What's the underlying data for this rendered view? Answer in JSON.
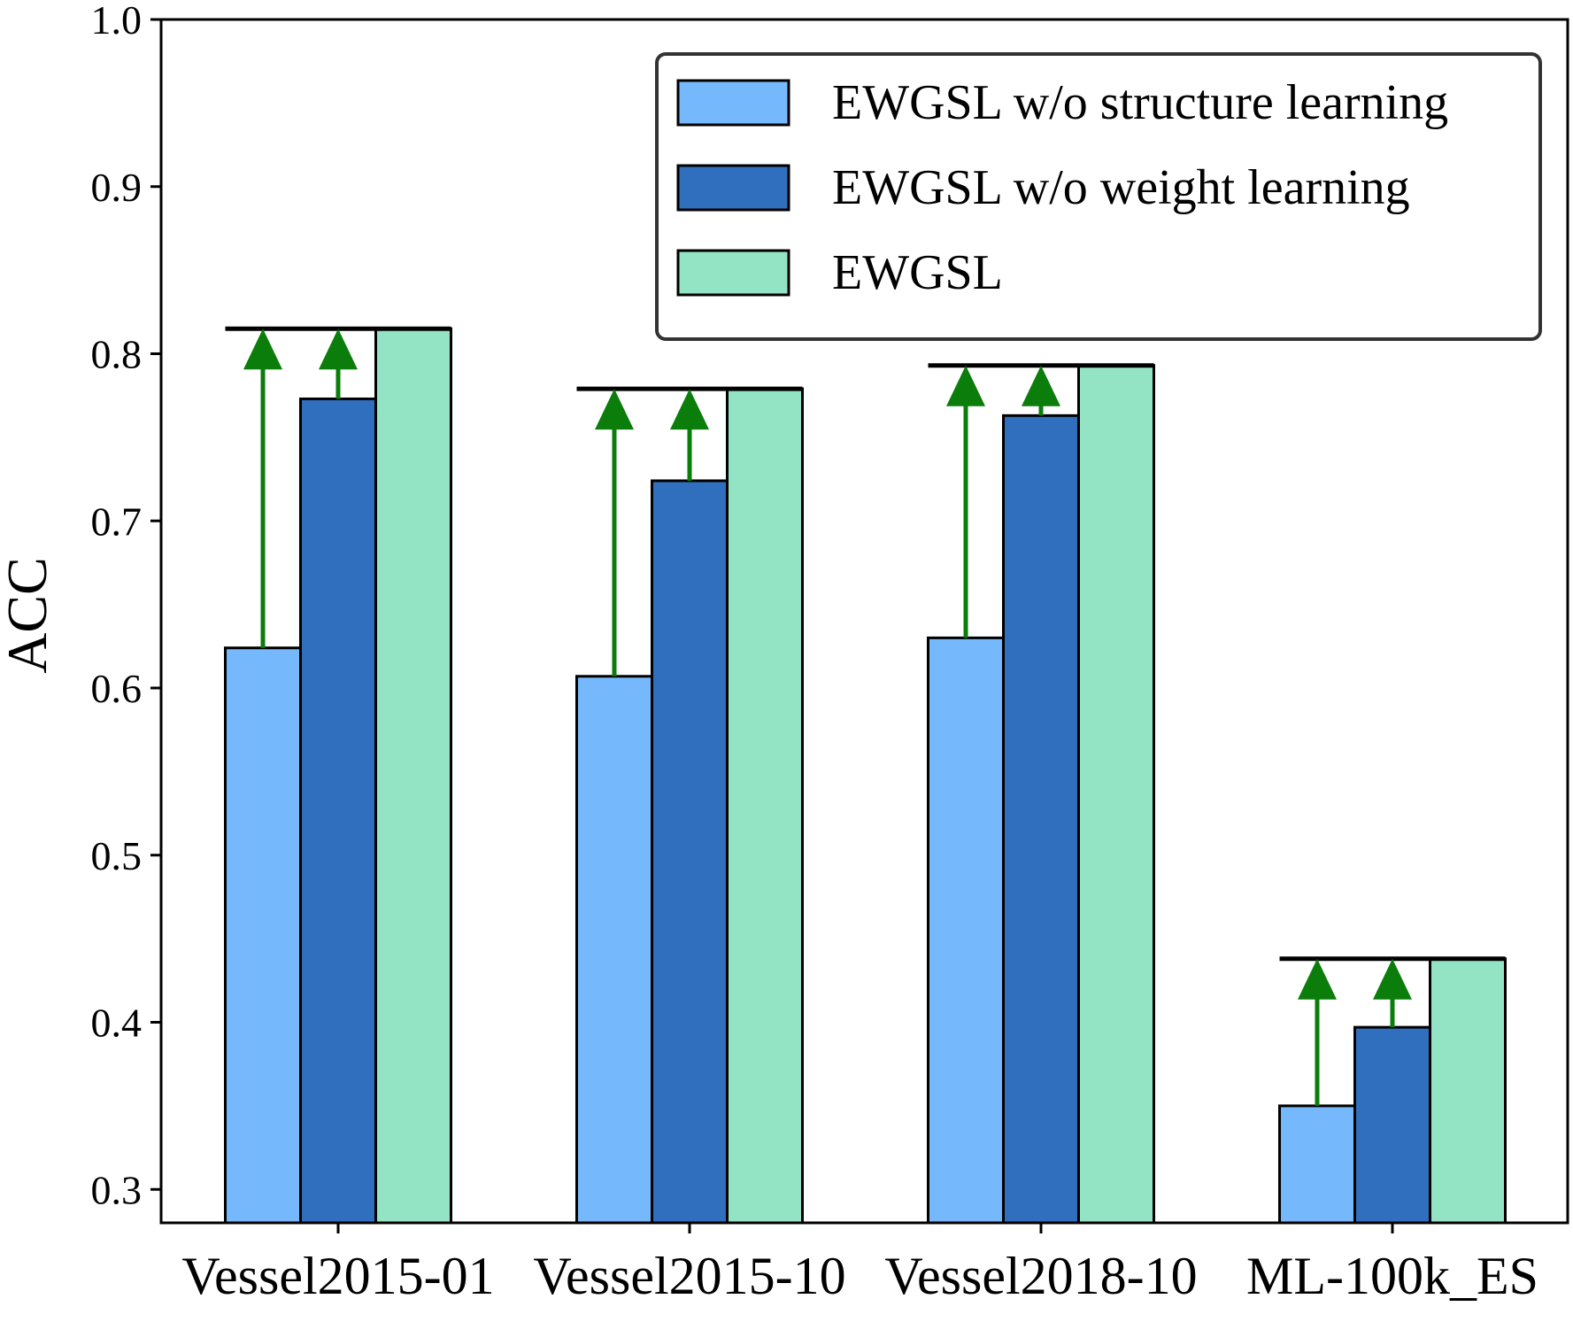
{
  "chart_data": {
    "type": "bar",
    "title": "",
    "xlabel": "",
    "ylabel": "ACC",
    "ylim": [
      0.28,
      1.0
    ],
    "yticks": [
      "0.3",
      "0.4",
      "0.5",
      "0.6",
      "0.7",
      "0.8",
      "0.9",
      "1.0"
    ],
    "categories": [
      "Vessel2015-01",
      "Vessel2015-10",
      "Vessel2018-10",
      "ML-100k_ES"
    ],
    "series": [
      {
        "name": "EWGSL w/o structure learning",
        "color": "#76b8fc",
        "values": [
          0.624,
          0.607,
          0.63,
          0.35
        ]
      },
      {
        "name": "EWGSL w/o weight learning",
        "color": "#2f6fbd",
        "values": [
          0.773,
          0.724,
          0.763,
          0.397
        ]
      },
      {
        "name": "EWGSL",
        "color": "#92e4c4",
        "values": [
          0.815,
          0.779,
          0.793,
          0.438
        ]
      }
    ],
    "improvement_arrow_color": "#0a7d0a",
    "grid": false,
    "legend_position": "top-right"
  }
}
